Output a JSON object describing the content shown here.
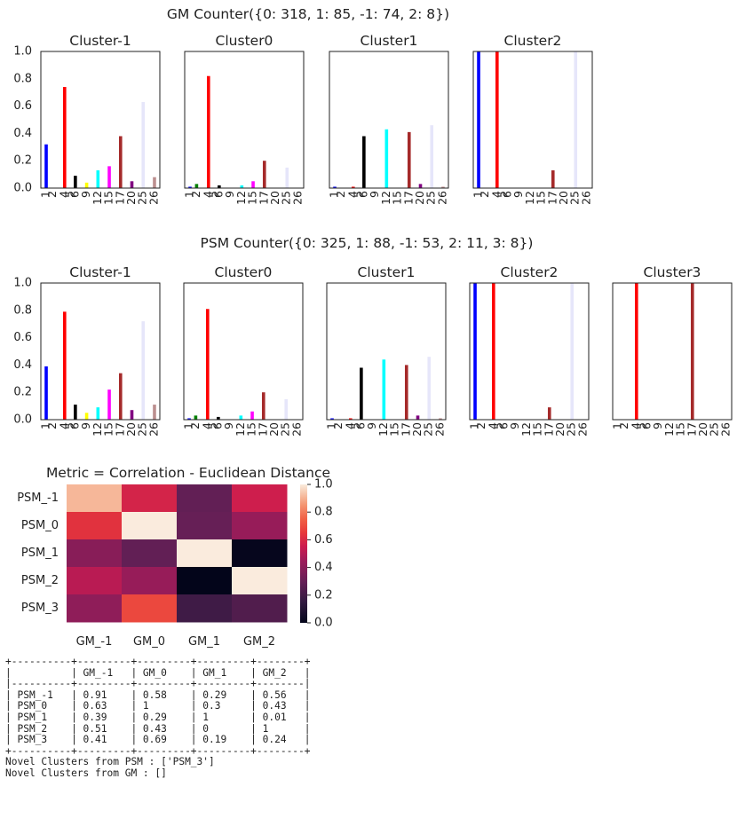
{
  "gm_title": "GM Counter({0: 318, 1: 85, -1: 74, 2: 8})",
  "psm_title": "PSM Counter({0: 325, 1: 88, -1: 53, 2: 11, 3: 8})",
  "heatmap_title": "Metric = Correlation - Euclidean Distance",
  "colors": {
    "1": "#0000ff",
    "2": "#008000",
    "4": "#ff0000",
    "5": "#00ffff",
    "6": "#000000",
    "9": "#ffff00",
    "12": "#00ffff",
    "15": "#ff00ff",
    "17": "#a52a2a",
    "20": "#800080",
    "25": "#e6e6fa",
    "26": "#bc8f8f"
  },
  "chart_data": [
    {
      "type": "bar",
      "group": "GM",
      "title": "Cluster-1",
      "categories": [
        "1",
        "2",
        "4",
        "5",
        "6",
        "9",
        "12",
        "15",
        "17",
        "20",
        "25",
        "26"
      ],
      "values": [
        0.32,
        0,
        0.74,
        0,
        0.09,
        0.04,
        0.13,
        0.16,
        0.38,
        0.05,
        0.63,
        0.08
      ],
      "ylim": [
        0,
        1.0
      ],
      "yticks": [
        "0.0",
        "0.2",
        "0.4",
        "0.6",
        "0.8",
        "1.0"
      ]
    },
    {
      "type": "bar",
      "group": "GM",
      "title": "Cluster0",
      "categories": [
        "1",
        "2",
        "4",
        "5",
        "6",
        "9",
        "12",
        "15",
        "17",
        "20",
        "25",
        "26"
      ],
      "values": [
        0.01,
        0.03,
        0.82,
        0,
        0.02,
        0,
        0.02,
        0.05,
        0.2,
        0,
        0.15,
        0
      ],
      "ylim": [
        0,
        1.0
      ]
    },
    {
      "type": "bar",
      "group": "GM",
      "title": "Cluster1",
      "categories": [
        "1",
        "2",
        "4",
        "5",
        "6",
        "9",
        "12",
        "15",
        "17",
        "20",
        "25",
        "26"
      ],
      "values": [
        0.01,
        0,
        0.01,
        0,
        0.38,
        0,
        0.43,
        0,
        0.41,
        0.03,
        0.46,
        0.01
      ],
      "ylim": [
        0,
        1.0
      ]
    },
    {
      "type": "bar",
      "group": "GM",
      "title": "Cluster2",
      "categories": [
        "1",
        "2",
        "4",
        "5",
        "6",
        "9",
        "12",
        "15",
        "17",
        "20",
        "25",
        "26"
      ],
      "values": [
        1.0,
        0,
        1.0,
        0,
        0,
        0,
        0,
        0,
        0.13,
        0,
        1.0,
        0
      ],
      "ylim": [
        0,
        1.0
      ]
    },
    {
      "type": "bar",
      "group": "PSM",
      "title": "Cluster-1",
      "categories": [
        "1",
        "2",
        "4",
        "5",
        "6",
        "9",
        "12",
        "15",
        "17",
        "20",
        "25",
        "26"
      ],
      "values": [
        0.39,
        0,
        0.79,
        0,
        0.11,
        0.05,
        0.09,
        0.22,
        0.34,
        0.07,
        0.72,
        0.11
      ],
      "ylim": [
        0,
        1.0
      ],
      "yticks": [
        "0.0",
        "0.2",
        "0.4",
        "0.6",
        "0.8",
        "1.0"
      ]
    },
    {
      "type": "bar",
      "group": "PSM",
      "title": "Cluster0",
      "categories": [
        "1",
        "2",
        "4",
        "5",
        "6",
        "9",
        "12",
        "15",
        "17",
        "20",
        "25",
        "26"
      ],
      "values": [
        0.01,
        0.03,
        0.81,
        0,
        0.02,
        0,
        0.03,
        0.06,
        0.2,
        0,
        0.15,
        0
      ],
      "ylim": [
        0,
        1.0
      ]
    },
    {
      "type": "bar",
      "group": "PSM",
      "title": "Cluster1",
      "categories": [
        "1",
        "2",
        "4",
        "5",
        "6",
        "9",
        "12",
        "15",
        "17",
        "20",
        "25",
        "26"
      ],
      "values": [
        0.01,
        0,
        0.01,
        0,
        0.38,
        0,
        0.44,
        0,
        0.4,
        0.03,
        0.46,
        0.01
      ],
      "ylim": [
        0,
        1.0
      ]
    },
    {
      "type": "bar",
      "group": "PSM",
      "title": "Cluster2",
      "categories": [
        "1",
        "2",
        "4",
        "5",
        "6",
        "9",
        "12",
        "15",
        "17",
        "20",
        "25",
        "26"
      ],
      "values": [
        1.0,
        0,
        1.0,
        0,
        0,
        0,
        0,
        0,
        0.09,
        0,
        1.0,
        0
      ],
      "ylim": [
        0,
        1.0
      ]
    },
    {
      "type": "bar",
      "group": "PSM",
      "title": "Cluster3",
      "categories": [
        "1",
        "2",
        "4",
        "5",
        "6",
        "9",
        "12",
        "15",
        "17",
        "20",
        "25",
        "26"
      ],
      "values": [
        0,
        0,
        1.0,
        0,
        0,
        0,
        0,
        0,
        1.0,
        0,
        0,
        0
      ],
      "ylim": [
        0,
        1.0
      ]
    },
    {
      "type": "heatmap",
      "title": "Metric = Correlation - Euclidean Distance",
      "rows": [
        "PSM_-1",
        "PSM_0",
        "PSM_1",
        "PSM_2",
        "PSM_3"
      ],
      "cols": [
        "GM_-1",
        "GM_0",
        "GM_1",
        "GM_2"
      ],
      "values": [
        [
          0.91,
          0.58,
          0.29,
          0.56
        ],
        [
          0.63,
          1,
          0.3,
          0.43
        ],
        [
          0.39,
          0.29,
          1,
          0.01
        ],
        [
          0.51,
          0.43,
          0,
          1
        ],
        [
          0.41,
          0.69,
          0.19,
          0.24
        ]
      ],
      "colorbar_ticks": [
        "0.0",
        "0.2",
        "0.4",
        "0.6",
        "0.8",
        "1.0"
      ],
      "vrange": [
        0,
        1.0
      ]
    }
  ],
  "table": {
    "headers": [
      "",
      "GM_-1",
      "GM_0",
      "GM_1",
      "GM_2"
    ],
    "rows": [
      [
        "PSM_-1",
        "0.91",
        "0.58",
        "0.29",
        "0.56"
      ],
      [
        "PSM_0",
        "0.63",
        "1",
        "0.3",
        "0.43"
      ],
      [
        "PSM_1",
        "0.39",
        "0.29",
        "1",
        "0.01"
      ],
      [
        "PSM_2",
        "0.51",
        "0.43",
        "0",
        "1"
      ],
      [
        "PSM_3",
        "0.41",
        "0.69",
        "0.19",
        "0.24"
      ]
    ]
  },
  "output_lines": [
    "Novel Clusters from PSM : ['PSM_3']",
    "Novel Clusters from GM : []"
  ]
}
